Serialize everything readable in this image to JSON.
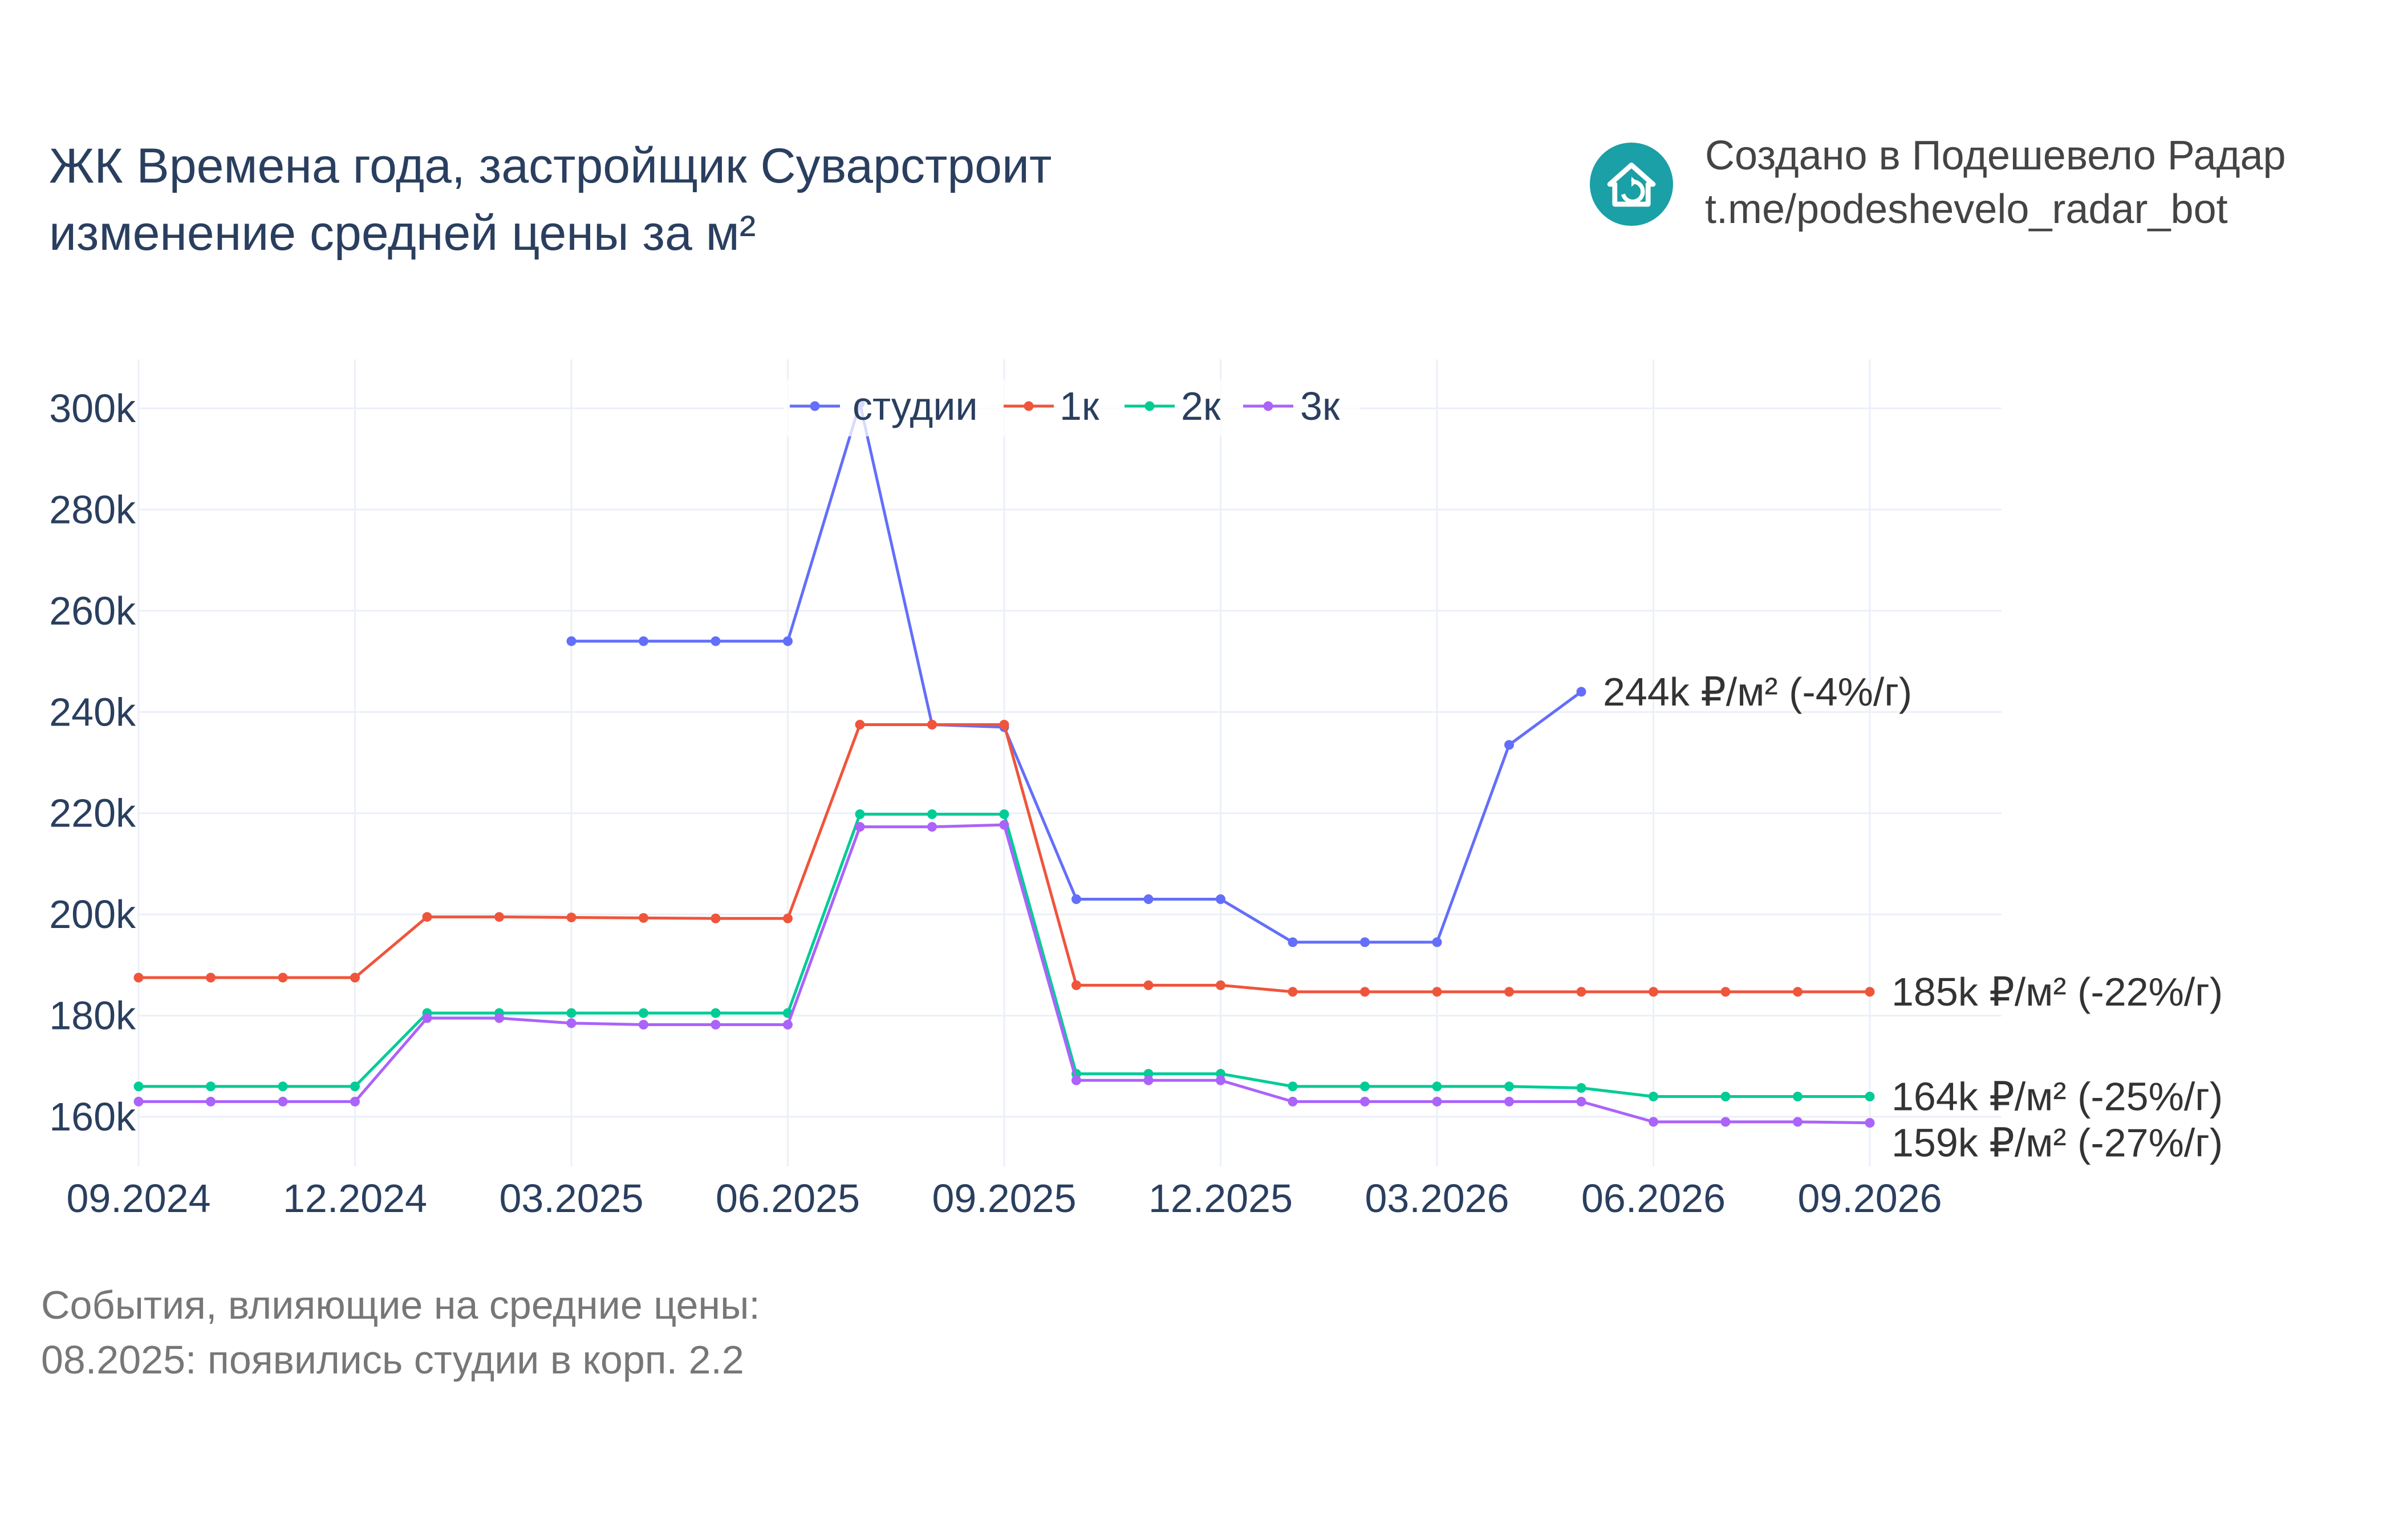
{
  "header": {
    "title_line1": "ЖК Времена года, застройщик Суварстроит",
    "title_line2": "изменение средней цены за м²"
  },
  "credit": {
    "line1": "Создано в Подешевело Радар",
    "line2": "t.me/podeshevelo_radar_bot",
    "logo_icon": "house-refresh-icon",
    "logo_color": "#1aa0a6"
  },
  "events": {
    "heading": "События, влияющие на средние цены:",
    "items": [
      "08.2025: появились студии в корп. 2.2"
    ]
  },
  "chart_data": {
    "type": "line",
    "x": [
      "09.2024",
      "10.2024",
      "11.2024",
      "12.2024",
      "01.2025",
      "02.2025",
      "03.2025",
      "04.2025",
      "05.2025",
      "06.2025",
      "07.2025",
      "08.2025",
      "09.2025",
      "10.2025",
      "11.2025",
      "12.2025",
      "01.2026",
      "02.2026",
      "03.2026",
      "04.2026",
      "05.2026",
      "06.2026",
      "07.2026",
      "08.2026",
      "09.2026"
    ],
    "x_ticks": [
      "09.2024",
      "12.2024",
      "03.2025",
      "06.2025",
      "09.2025",
      "12.2025",
      "03.2026",
      "06.2026",
      "09.2026"
    ],
    "y_ticks": [
      "160k",
      "180k",
      "200k",
      "220k",
      "240k",
      "260k",
      "280k",
      "300k"
    ],
    "ylim": [
      150000,
      310000
    ],
    "grid": true,
    "legend_position": "top-center",
    "series": [
      {
        "name": "студии",
        "color": "#636efa",
        "values": [
          null,
          null,
          null,
          null,
          null,
          null,
          254000,
          254000,
          254000,
          254000,
          301000,
          237500,
          237000,
          203000,
          203000,
          203000,
          194500,
          194500,
          194500,
          233500,
          244000,
          null,
          null,
          null,
          null
        ],
        "end_label": "244k ₽/м² (-4%/г)"
      },
      {
        "name": "1к",
        "color": "#ef553b",
        "values": [
          187500,
          187500,
          187500,
          187500,
          199500,
          199500,
          199400,
          199300,
          199200,
          199200,
          237500,
          237500,
          237500,
          186000,
          186000,
          186000,
          184700,
          184700,
          184700,
          184700,
          184700,
          184700,
          184700,
          184700,
          184700
        ],
        "end_label": "185k ₽/м² (-22%/г)"
      },
      {
        "name": "2к",
        "color": "#00cc96",
        "values": [
          166000,
          166000,
          166000,
          166000,
          180500,
          180500,
          180500,
          180500,
          180500,
          180500,
          219800,
          219800,
          219800,
          168500,
          168500,
          168500,
          166000,
          166000,
          166000,
          166000,
          165700,
          164000,
          164000,
          164000,
          164000
        ],
        "end_label": "164k ₽/м² (-25%/г)"
      },
      {
        "name": "3к",
        "color": "#ab63fa",
        "values": [
          163000,
          163000,
          163000,
          163000,
          179500,
          179500,
          178500,
          178200,
          178200,
          178200,
          217300,
          217300,
          217700,
          167200,
          167200,
          167200,
          163000,
          163000,
          163000,
          163000,
          163000,
          159000,
          159000,
          159000,
          158800
        ],
        "end_label": "159k ₽/м² (-27%/г)"
      }
    ]
  }
}
